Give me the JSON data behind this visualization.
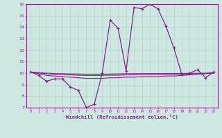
{
  "xlabel": "Windchill (Refroidissement éolien,°C)",
  "background_color": "#cce8e0",
  "line_color": "#882288",
  "hours": [
    0,
    1,
    2,
    3,
    4,
    5,
    6,
    7,
    8,
    9,
    10,
    11,
    12,
    13,
    14,
    15,
    16,
    17,
    18,
    19,
    20,
    21,
    22,
    23
  ],
  "windchill": [
    10.1,
    9.8,
    9.3,
    9.5,
    9.5,
    8.8,
    8.5,
    7.0,
    7.3,
    10.0,
    14.6,
    13.9,
    10.2,
    15.7,
    15.6,
    16.0,
    15.6,
    14.1,
    12.2,
    9.9,
    10.0,
    10.3,
    9.6,
    10.1
  ],
  "line2": [
    10.1,
    9.95,
    9.8,
    9.75,
    9.7,
    9.65,
    9.6,
    9.55,
    9.55,
    9.55,
    9.6,
    9.6,
    9.65,
    9.65,
    9.7,
    9.7,
    9.7,
    9.75,
    9.75,
    9.8,
    9.85,
    9.9,
    9.95,
    10.0
  ],
  "line3": [
    10.1,
    10.0,
    9.95,
    9.9,
    9.87,
    9.85,
    9.82,
    9.8,
    9.8,
    9.8,
    9.82,
    9.82,
    9.85,
    9.85,
    9.87,
    9.87,
    9.88,
    9.88,
    9.88,
    9.9,
    9.92,
    9.95,
    9.97,
    10.0
  ],
  "line4": [
    10.1,
    10.05,
    10.0,
    9.97,
    9.95,
    9.93,
    9.92,
    9.9,
    9.9,
    9.9,
    9.92,
    9.93,
    9.95,
    9.95,
    9.96,
    9.96,
    9.96,
    9.97,
    9.97,
    9.98,
    9.98,
    9.99,
    10.0,
    10.05
  ],
  "ylim": [
    7,
    16
  ],
  "yticks": [
    7,
    8,
    9,
    10,
    11,
    12,
    13,
    14,
    15,
    16
  ],
  "xticks": [
    0,
    1,
    2,
    3,
    4,
    5,
    6,
    7,
    8,
    9,
    10,
    11,
    12,
    13,
    14,
    15,
    16,
    17,
    18,
    19,
    20,
    21,
    22,
    23
  ]
}
